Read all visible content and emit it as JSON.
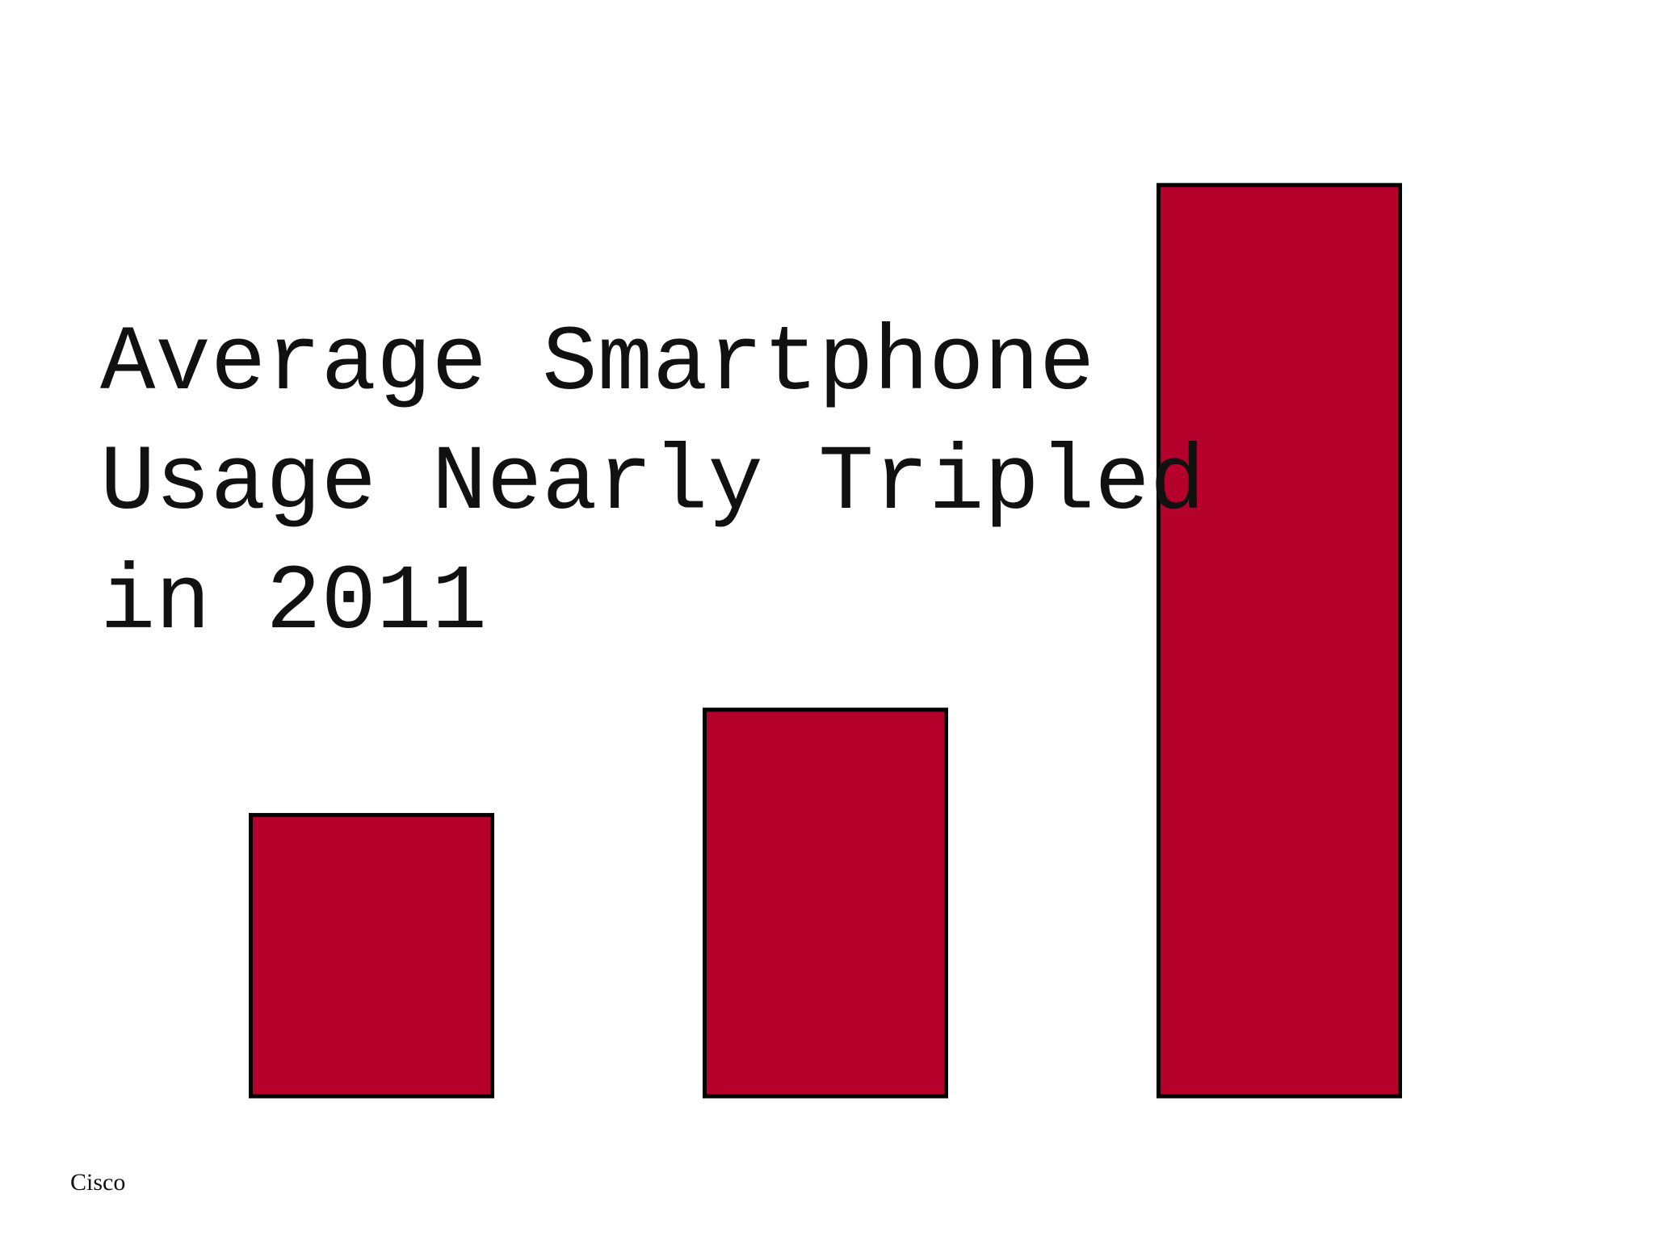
{
  "chart_data": {
    "type": "bar",
    "title": "Average Smartphone Usage Nearly Tripled in 2011",
    "source": "Cisco",
    "categories": [
      null,
      null,
      null
    ],
    "values": [
      267,
      367,
      865
    ],
    "color": "#b5002c",
    "ylim": [
      0,
      1000
    ]
  }
}
